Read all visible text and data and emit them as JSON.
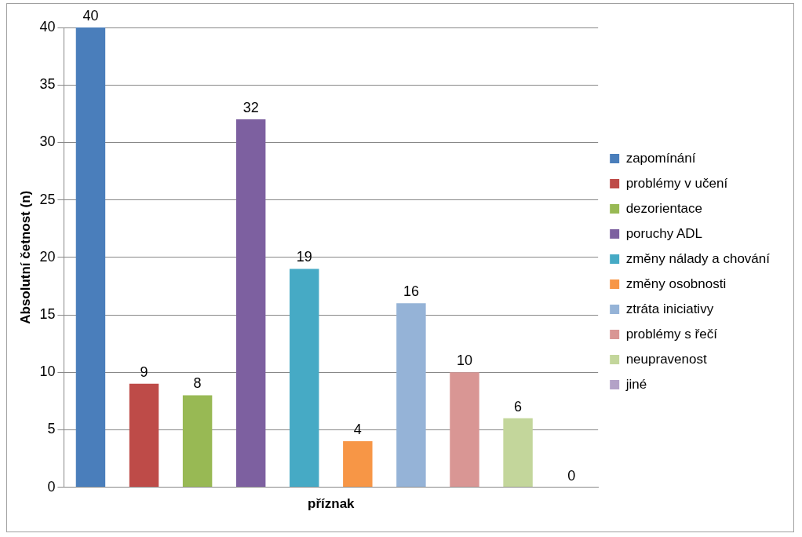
{
  "chart_data": {
    "type": "bar",
    "xlabel": "příznak",
    "ylabel": "Absolutní četnost (n)",
    "categories": [
      null,
      null,
      null,
      null,
      null,
      null,
      null,
      null,
      null,
      null
    ],
    "series": [
      {
        "name": "zapomínání",
        "color": "#4a7ebb",
        "values": [
          40,
          null,
          null,
          null,
          null,
          null,
          null,
          null,
          null,
          null
        ]
      },
      {
        "name": "problémy v učení",
        "color": "#be4b48",
        "values": [
          null,
          9,
          null,
          null,
          null,
          null,
          null,
          null,
          null,
          null
        ]
      },
      {
        "name": "dezorientace",
        "color": "#98b954",
        "values": [
          null,
          null,
          8,
          null,
          null,
          null,
          null,
          null,
          null,
          null
        ]
      },
      {
        "name": "poruchy ADL",
        "color": "#7d60a0",
        "values": [
          null,
          null,
          null,
          32,
          null,
          null,
          null,
          null,
          null,
          null
        ]
      },
      {
        "name": "změny nálady a chování",
        "color": "#46aac5",
        "values": [
          null,
          null,
          null,
          null,
          19,
          null,
          null,
          null,
          null,
          null
        ]
      },
      {
        "name": "změny osobnosti",
        "color": "#f79646",
        "values": [
          null,
          null,
          null,
          null,
          null,
          4,
          null,
          null,
          null,
          null
        ]
      },
      {
        "name": "ztráta iniciativy",
        "color": "#95b3d7",
        "values": [
          null,
          null,
          null,
          null,
          null,
          null,
          16,
          null,
          null,
          null
        ]
      },
      {
        "name": "problémy s řečí",
        "color": "#d99694",
        "values": [
          null,
          null,
          null,
          null,
          null,
          null,
          null,
          10,
          null,
          null
        ]
      },
      {
        "name": "neupravenost",
        "color": "#c3d69b",
        "values": [
          null,
          null,
          null,
          null,
          null,
          null,
          null,
          null,
          6,
          null
        ]
      },
      {
        "name": "jiné",
        "color": "#b3a2c7",
        "values": [
          null,
          null,
          null,
          null,
          null,
          null,
          null,
          null,
          null,
          0
        ]
      }
    ],
    "ylim": [
      0,
      40
    ],
    "yticks": [
      0,
      5,
      10,
      15,
      20,
      25,
      30,
      35,
      40
    ],
    "grid": "y",
    "legend": "right",
    "data_labels": true
  }
}
